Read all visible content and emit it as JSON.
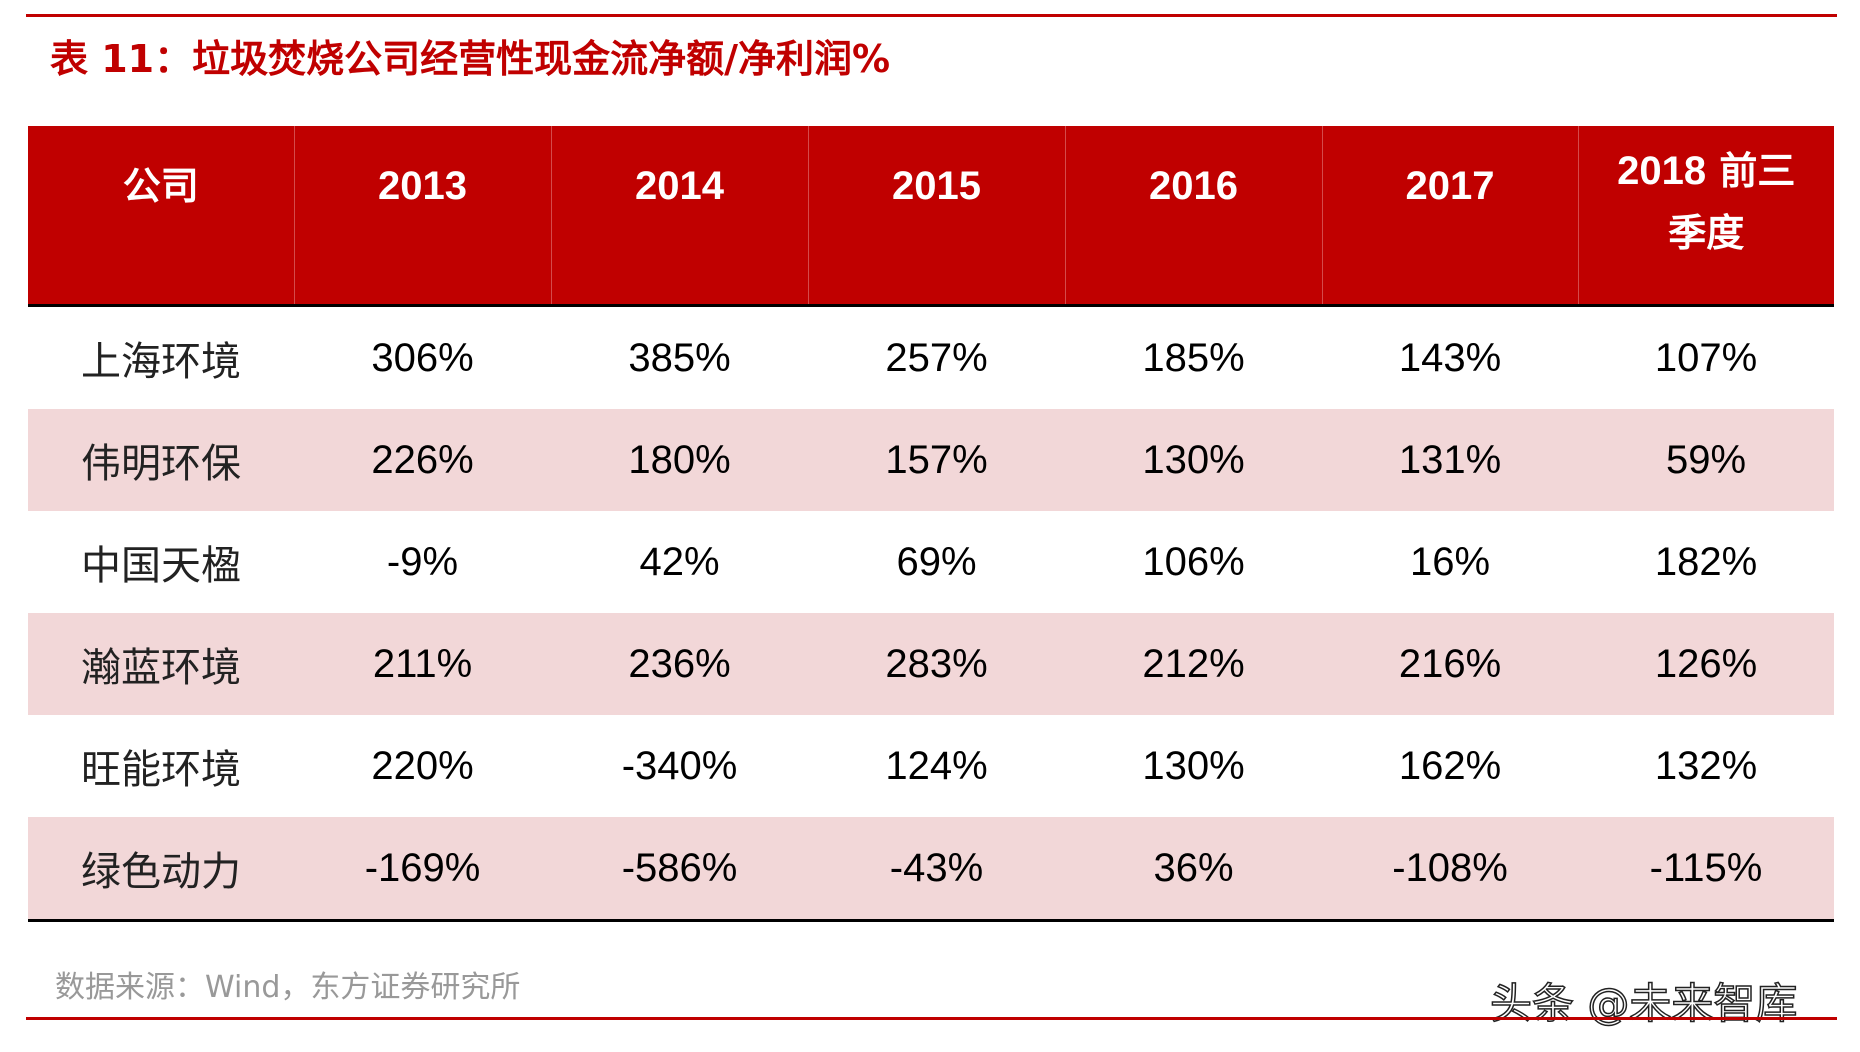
{
  "title": "表 11：垃圾焚烧公司经营性现金流净额/净利润%",
  "table": {
    "headers": {
      "company": "公司",
      "y2013": "2013",
      "y2014": "2014",
      "y2015": "2015",
      "y2016": "2016",
      "y2017": "2017",
      "y2018_year": "2018",
      "y2018_suffix": " 前三",
      "y2018_line2": "季度"
    },
    "rows": [
      {
        "company": "上海环境",
        "v2013": "306%",
        "v2014": "385%",
        "v2015": "257%",
        "v2016": "185%",
        "v2017": "143%",
        "v2018": "107%"
      },
      {
        "company": "伟明环保",
        "v2013": "226%",
        "v2014": "180%",
        "v2015": "157%",
        "v2016": "130%",
        "v2017": "131%",
        "v2018": "59%"
      },
      {
        "company": "中国天楹",
        "v2013": "-9%",
        "v2014": "42%",
        "v2015": "69%",
        "v2016": "106%",
        "v2017": "16%",
        "v2018": "182%"
      },
      {
        "company": "瀚蓝环境",
        "v2013": "211%",
        "v2014": "236%",
        "v2015": "283%",
        "v2016": "212%",
        "v2017": "216%",
        "v2018": "126%"
      },
      {
        "company": "旺能环境",
        "v2013": "220%",
        "v2014": "-340%",
        "v2015": "124%",
        "v2016": "130%",
        "v2017": "162%",
        "v2018": "132%"
      },
      {
        "company": "绿色动力",
        "v2013": "-169%",
        "v2014": "-586%",
        "v2015": "-43%",
        "v2016": "36%",
        "v2017": "-108%",
        "v2018": "-115%"
      }
    ]
  },
  "source": "数据来源：Wind，东方证券研究所",
  "watermark": "头条 @未来智库",
  "colors": {
    "brand_red": "#c00000",
    "row_shade": "#f2d7d8",
    "source_gray": "#999999"
  }
}
